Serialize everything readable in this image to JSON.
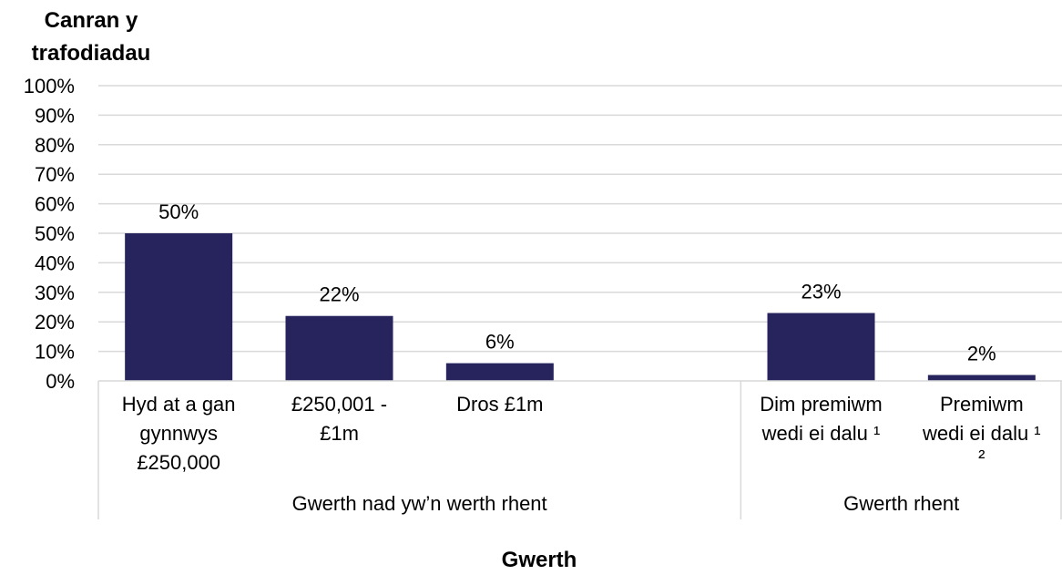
{
  "chart_data": {
    "type": "bar",
    "ylabel_lines": [
      "Canran y",
      "trafodiadau"
    ],
    "xlabel": "Gwerth",
    "yticks": [
      "0%",
      "10%",
      "20%",
      "30%",
      "40%",
      "50%",
      "60%",
      "70%",
      "80%",
      "90%",
      "100%"
    ],
    "ylim": [
      0,
      100
    ],
    "grid": true,
    "bar_color": "#27245d",
    "categories": [
      {
        "lines": [
          "Hyd at a gan",
          "gynnwys",
          "£250,000"
        ],
        "value": 50,
        "label": "50%"
      },
      {
        "lines": [
          "£250,001 -",
          "£1m"
        ],
        "value": 22,
        "label": "22%"
      },
      {
        "lines": [
          "Dros £1m"
        ],
        "value": 6,
        "label": "6%"
      },
      {
        "lines": [],
        "value": null,
        "label": ""
      },
      {
        "lines": [
          "Dim premiwm",
          "wedi ei dalu ¹"
        ],
        "value": 23,
        "label": "23%"
      },
      {
        "lines": [
          "Premiwm",
          "wedi ei dalu ¹",
          "²"
        ],
        "value": 2,
        "label": "2%"
      }
    ],
    "groups": [
      {
        "label": "Gwerth nad yw’n werth rhent",
        "span": [
          0,
          3
        ]
      },
      {
        "label": "Gwerth rhent",
        "span": [
          4,
          5
        ]
      }
    ]
  }
}
